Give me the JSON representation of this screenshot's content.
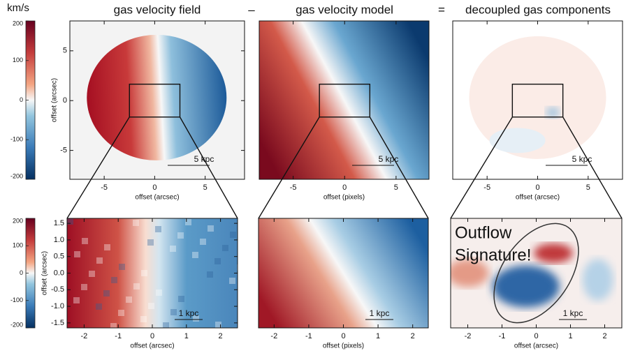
{
  "titles": [
    "gas velocity field",
    "gas velocity model",
    "decoupled gas components"
  ],
  "operators": [
    "–",
    "="
  ],
  "colorbars": [
    {
      "label": "km/s",
      "lim": [
        -200,
        200
      ],
      "ticks": [
        -200,
        -100,
        0,
        100,
        200
      ]
    },
    {
      "lim": [
        -200,
        200
      ],
      "ticks": [
        -200,
        -100,
        0,
        100,
        200
      ]
    }
  ],
  "top_panels": [
    {
      "xlabel": "offset (arcsec)",
      "ylabel": "offset (arcsec)",
      "xlim": [
        -8.4,
        8.9
      ],
      "ylim": [
        -7.9,
        8.0
      ],
      "xticks": [
        -5,
        0,
        5
      ],
      "yticks": [
        -5,
        0,
        5
      ],
      "scalebar": "5 kpc"
    },
    {
      "xlabel": "offset (pixels)",
      "xlim": [
        -8.3,
        8.2
      ],
      "ylim": [
        -7.9,
        8.0
      ],
      "xticks": [
        -5,
        0,
        5
      ],
      "scalebar": "5 kpc"
    },
    {
      "xlabel": "offset (arcsec)",
      "xlim": [
        -8.4,
        8.4
      ],
      "ylim": [
        -7.9,
        8.0
      ],
      "xticks": [
        -5,
        0,
        5
      ],
      "scalebar": "5 kpc"
    }
  ],
  "bottom_panels": [
    {
      "xlabel": "offset (arcsec)",
      "ylabel": "offset (arcsec)",
      "xlim": [
        -2.5,
        2.5
      ],
      "ylim": [
        -1.65,
        1.65
      ],
      "xticks": [
        -2,
        -1,
        0,
        1,
        2
      ],
      "yticks": [
        -1.5,
        {
          "value": -1,
          "label": "-1.0"
        },
        -0.5,
        {
          "value": 0,
          "label": "0.0"
        },
        0.5,
        {
          "value": 1,
          "label": "1.0"
        },
        1.5
      ],
      "scalebar": "1 kpc"
    },
    {
      "xlabel": "offset (pixels)",
      "xlim": [
        -2.45,
        2.45
      ],
      "ylim": [
        -1.65,
        1.65
      ],
      "xticks": [
        -2,
        -1,
        0,
        1,
        2
      ],
      "scalebar": "1 kpc"
    },
    {
      "xlabel": "offset (arcsec)",
      "xlim": [
        -2.5,
        2.5
      ],
      "ylim": [
        -1.65,
        1.65
      ],
      "xticks": [
        -2,
        -1,
        0,
        1,
        2
      ],
      "scalebar": "1 kpc"
    }
  ],
  "annotation": [
    "Outflow",
    "Signature!"
  ]
}
